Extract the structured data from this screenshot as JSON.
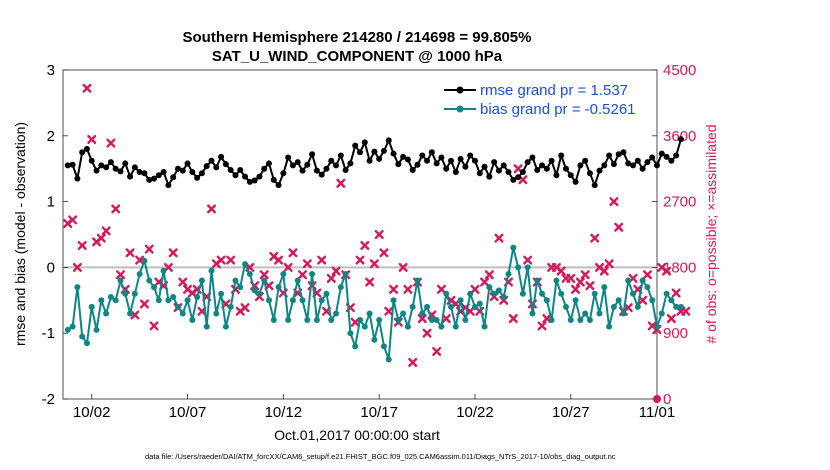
{
  "colors": {
    "rmse": "#000000",
    "bias": "#0f8585",
    "obs": "#d3195b",
    "zero_line": "#bdbdbd",
    "legend_text": "#1a4fd6"
  },
  "chart_data": {
    "type": "line",
    "title": "Southern Hemisphere 214280 / 214698 = 99.805%",
    "subtitle": "SAT_U_WIND_COMPONENT @ 1000 hPa",
    "xlabel": "Oct.01,2017 00:00:00 start",
    "ylabel": "rmse and bias (model - observation)",
    "y2label": "# of obs: o=possible; ×=assimilated",
    "footer": "data file: /Users/raeder/DAI/ATM_forcXX/CAM6_setup/f.e21.FHIST_BGC.f09_025.CAM6assim.011/Diags_NTrS_2017-10/obs_diag_output.nc",
    "xlim": [
      0.5,
      31.5
    ],
    "ylim": [
      -2,
      3
    ],
    "y2lim": [
      0,
      4500
    ],
    "yticks": [
      "-2",
      "-1",
      "0",
      "1",
      "2",
      "3"
    ],
    "y2ticks": [
      "0",
      "900",
      "1800",
      "2700",
      "3600",
      "4500"
    ],
    "xticks": [
      {
        "x": 2,
        "label": "10/02"
      },
      {
        "x": 7,
        "label": "10/07"
      },
      {
        "x": 12,
        "label": "10/12"
      },
      {
        "x": 17,
        "label": "10/17"
      },
      {
        "x": 22,
        "label": "10/22"
      },
      {
        "x": 27,
        "label": "10/27"
      },
      {
        "x": 32,
        "label": "11/01"
      }
    ],
    "legend": {
      "rmse": "rmse grand pr = 1.537",
      "bias": "bias grand pr = -0.5261"
    },
    "series": [
      {
        "name": "rmse",
        "values": [
          1.55,
          1.56,
          1.35,
          1.75,
          1.8,
          1.62,
          1.47,
          1.55,
          1.52,
          1.6,
          1.5,
          1.46,
          1.58,
          1.38,
          1.52,
          1.45,
          1.43,
          1.33,
          1.35,
          1.4,
          1.45,
          1.25,
          1.37,
          1.5,
          1.47,
          1.58,
          1.45,
          1.36,
          1.43,
          1.54,
          1.62,
          1.52,
          1.68,
          1.57,
          1.48,
          1.4,
          1.48,
          1.38,
          1.3,
          1.32,
          1.38,
          1.5,
          1.58,
          1.33,
          1.25,
          1.43,
          1.67,
          1.55,
          1.6,
          1.47,
          1.56,
          1.72,
          1.47,
          1.41,
          1.5,
          1.62,
          1.55,
          1.7,
          1.48,
          1.58,
          1.85,
          1.75,
          1.9,
          1.62,
          1.76,
          1.65,
          1.77,
          1.93,
          1.73,
          1.57,
          1.68,
          1.64,
          1.48,
          1.56,
          1.7,
          1.62,
          1.75,
          1.58,
          1.67,
          1.5,
          1.62,
          1.45,
          1.65,
          1.53,
          1.7,
          1.62,
          1.43,
          1.53,
          1.38,
          1.6,
          1.47,
          1.55,
          1.45,
          1.33,
          1.37,
          1.45,
          1.6,
          1.67,
          1.48,
          1.55,
          1.5,
          1.62,
          1.4,
          1.7,
          1.5,
          1.4,
          1.3,
          1.55,
          1.62,
          1.43,
          1.25,
          1.47,
          1.55,
          1.7,
          1.57,
          1.72,
          1.75,
          1.58,
          1.55,
          1.62,
          1.5,
          1.6,
          1.67,
          1.55,
          1.73,
          1.68,
          1.62,
          1.7,
          1.95
        ]
      },
      {
        "name": "bias",
        "values": [
          -0.95,
          -0.9,
          -0.3,
          -1.05,
          -1.15,
          -0.6,
          -0.95,
          -0.5,
          -0.7,
          -0.45,
          -0.5,
          -0.2,
          -0.4,
          -0.7,
          -0.4,
          -0.1,
          0.1,
          -0.2,
          -0.3,
          -0.5,
          -0.05,
          -0.5,
          -0.45,
          -0.6,
          -0.7,
          -0.5,
          -0.8,
          -0.45,
          -0.2,
          -0.9,
          -0.05,
          -0.7,
          -0.4,
          -0.9,
          -0.6,
          -0.2,
          -0.3,
          0.05,
          -0.1,
          -0.35,
          -0.4,
          -0.2,
          -0.5,
          -0.8,
          -0.3,
          -0.1,
          -0.8,
          -0.5,
          -0.2,
          -0.5,
          -0.8,
          -0.1,
          -0.8,
          -0.5,
          -0.4,
          -0.8,
          -0.7,
          -0.3,
          -0.1,
          -1.0,
          -1.2,
          -0.8,
          -0.9,
          -0.7,
          -1.1,
          -0.8,
          -1.2,
          -1.4,
          -0.5,
          -0.8,
          -0.7,
          -0.9,
          -0.6,
          -0.2,
          -0.7,
          -0.6,
          -0.8,
          -0.8,
          -0.9,
          -0.4,
          -0.6,
          -0.9,
          -0.5,
          -0.8,
          -0.4,
          -0.6,
          -0.55,
          -0.9,
          -0.3,
          -0.4,
          -0.35,
          -0.45,
          -0.1,
          0.3,
          0.0,
          -0.4,
          0.0,
          -0.7,
          -0.2,
          -0.4,
          -0.5,
          -0.8,
          -0.2,
          -0.4,
          -0.6,
          -0.8,
          -0.5,
          -0.8,
          -0.7,
          -0.8,
          -0.4,
          -0.7,
          -0.3,
          -0.9,
          -0.6,
          -0.5,
          -0.7,
          -0.2,
          -0.4,
          -0.6,
          -0.2,
          -0.3,
          -0.5,
          -0.9,
          -0.7,
          -0.4,
          -0.5,
          -0.6,
          -0.6
        ]
      },
      {
        "name": "obs_assimilated",
        "values": [
          2400,
          2450,
          1800,
          2100,
          4250,
          3550,
          2150,
          2200,
          2300,
          3500,
          2600,
          1700,
          1500,
          2000,
          1150,
          1900,
          1300,
          2050,
          1000,
          1600,
          1550,
          1800,
          2000,
          1250,
          1600,
          1500,
          1450,
          1500,
          1200,
          1400,
          2600,
          1850,
          1900,
          1300,
          1900,
          1500,
          1200,
          1250,
          1800,
          1550,
          1400,
          1700,
          1550,
          1950,
          1900,
          1450,
          1800,
          2000,
          1450,
          1700,
          1850,
          1550,
          1450,
          1900,
          1200,
          1650,
          1750,
          2950,
          1700,
          1250,
          1050,
          1900,
          2100,
          1600,
          1850,
          2250,
          2000,
          1200,
          1500,
          1050,
          1800,
          1500,
          500,
          1600,
          1100,
          900,
          1150,
          650,
          1500,
          1100,
          1350,
          1300,
          1200,
          1250,
          1200,
          1500,
          1200,
          1600,
          1700,
          1400,
          2200,
          1350,
          1600,
          1100,
          3150,
          3000,
          1900,
          1300,
          1600,
          1000,
          1100,
          1800,
          1800,
          1750,
          1650,
          1650,
          1500,
          1600,
          1700,
          1550,
          2200,
          1800,
          1750,
          1850,
          2700,
          2350,
          1200,
          1250,
          1650,
          1500,
          1350,
          1700,
          1000,
          950,
          1800,
          1750,
          1100,
          1450,
          1200,
          1200
        ]
      },
      {
        "name": "obs_possible_zero",
        "values": [
          0
        ]
      }
    ]
  }
}
